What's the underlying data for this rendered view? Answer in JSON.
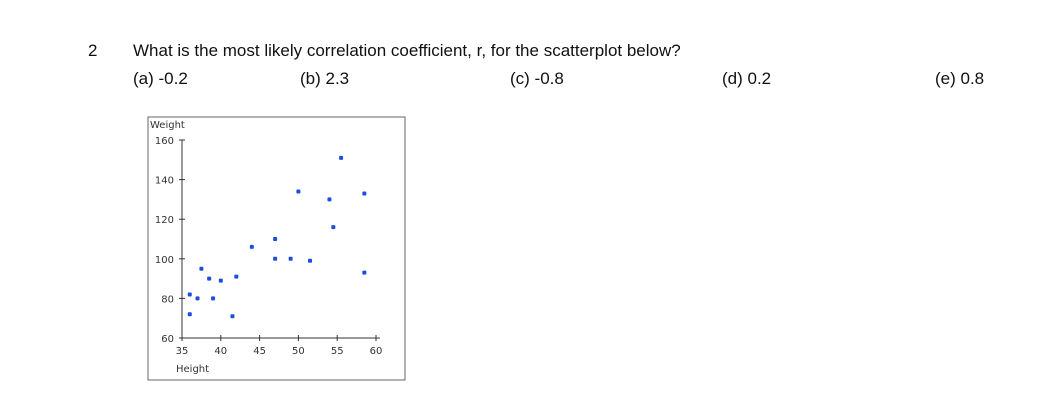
{
  "question": {
    "number": "2",
    "text": "What is the most likely correlation coefficient, r, for the scatterplot below?",
    "options": [
      "(a)  -0.2",
      "(b)  2.3",
      "(c)  -0.8",
      "(d) 0.2",
      "(e) 0.8"
    ]
  },
  "chart_data": {
    "type": "scatter",
    "ylabel": "Weight",
    "xlabel": "Height",
    "x": [
      36,
      36,
      37,
      37.5,
      38.5,
      39,
      40,
      41.5,
      42,
      44,
      47,
      47,
      49,
      50,
      51.5,
      54,
      54.5,
      55.5,
      58.5,
      58.5
    ],
    "y": [
      82,
      72,
      80,
      95,
      90,
      80,
      89,
      71,
      91,
      106,
      110,
      100,
      100,
      134,
      99,
      130,
      116,
      151,
      133,
      93
    ],
    "color": "#1a4fe0",
    "xlim": [
      35,
      60
    ],
    "ylim": [
      60,
      160
    ],
    "xticks": [
      35,
      40,
      45,
      50,
      55,
      60
    ],
    "yticks": [
      60,
      80,
      100,
      120,
      140,
      160
    ]
  }
}
